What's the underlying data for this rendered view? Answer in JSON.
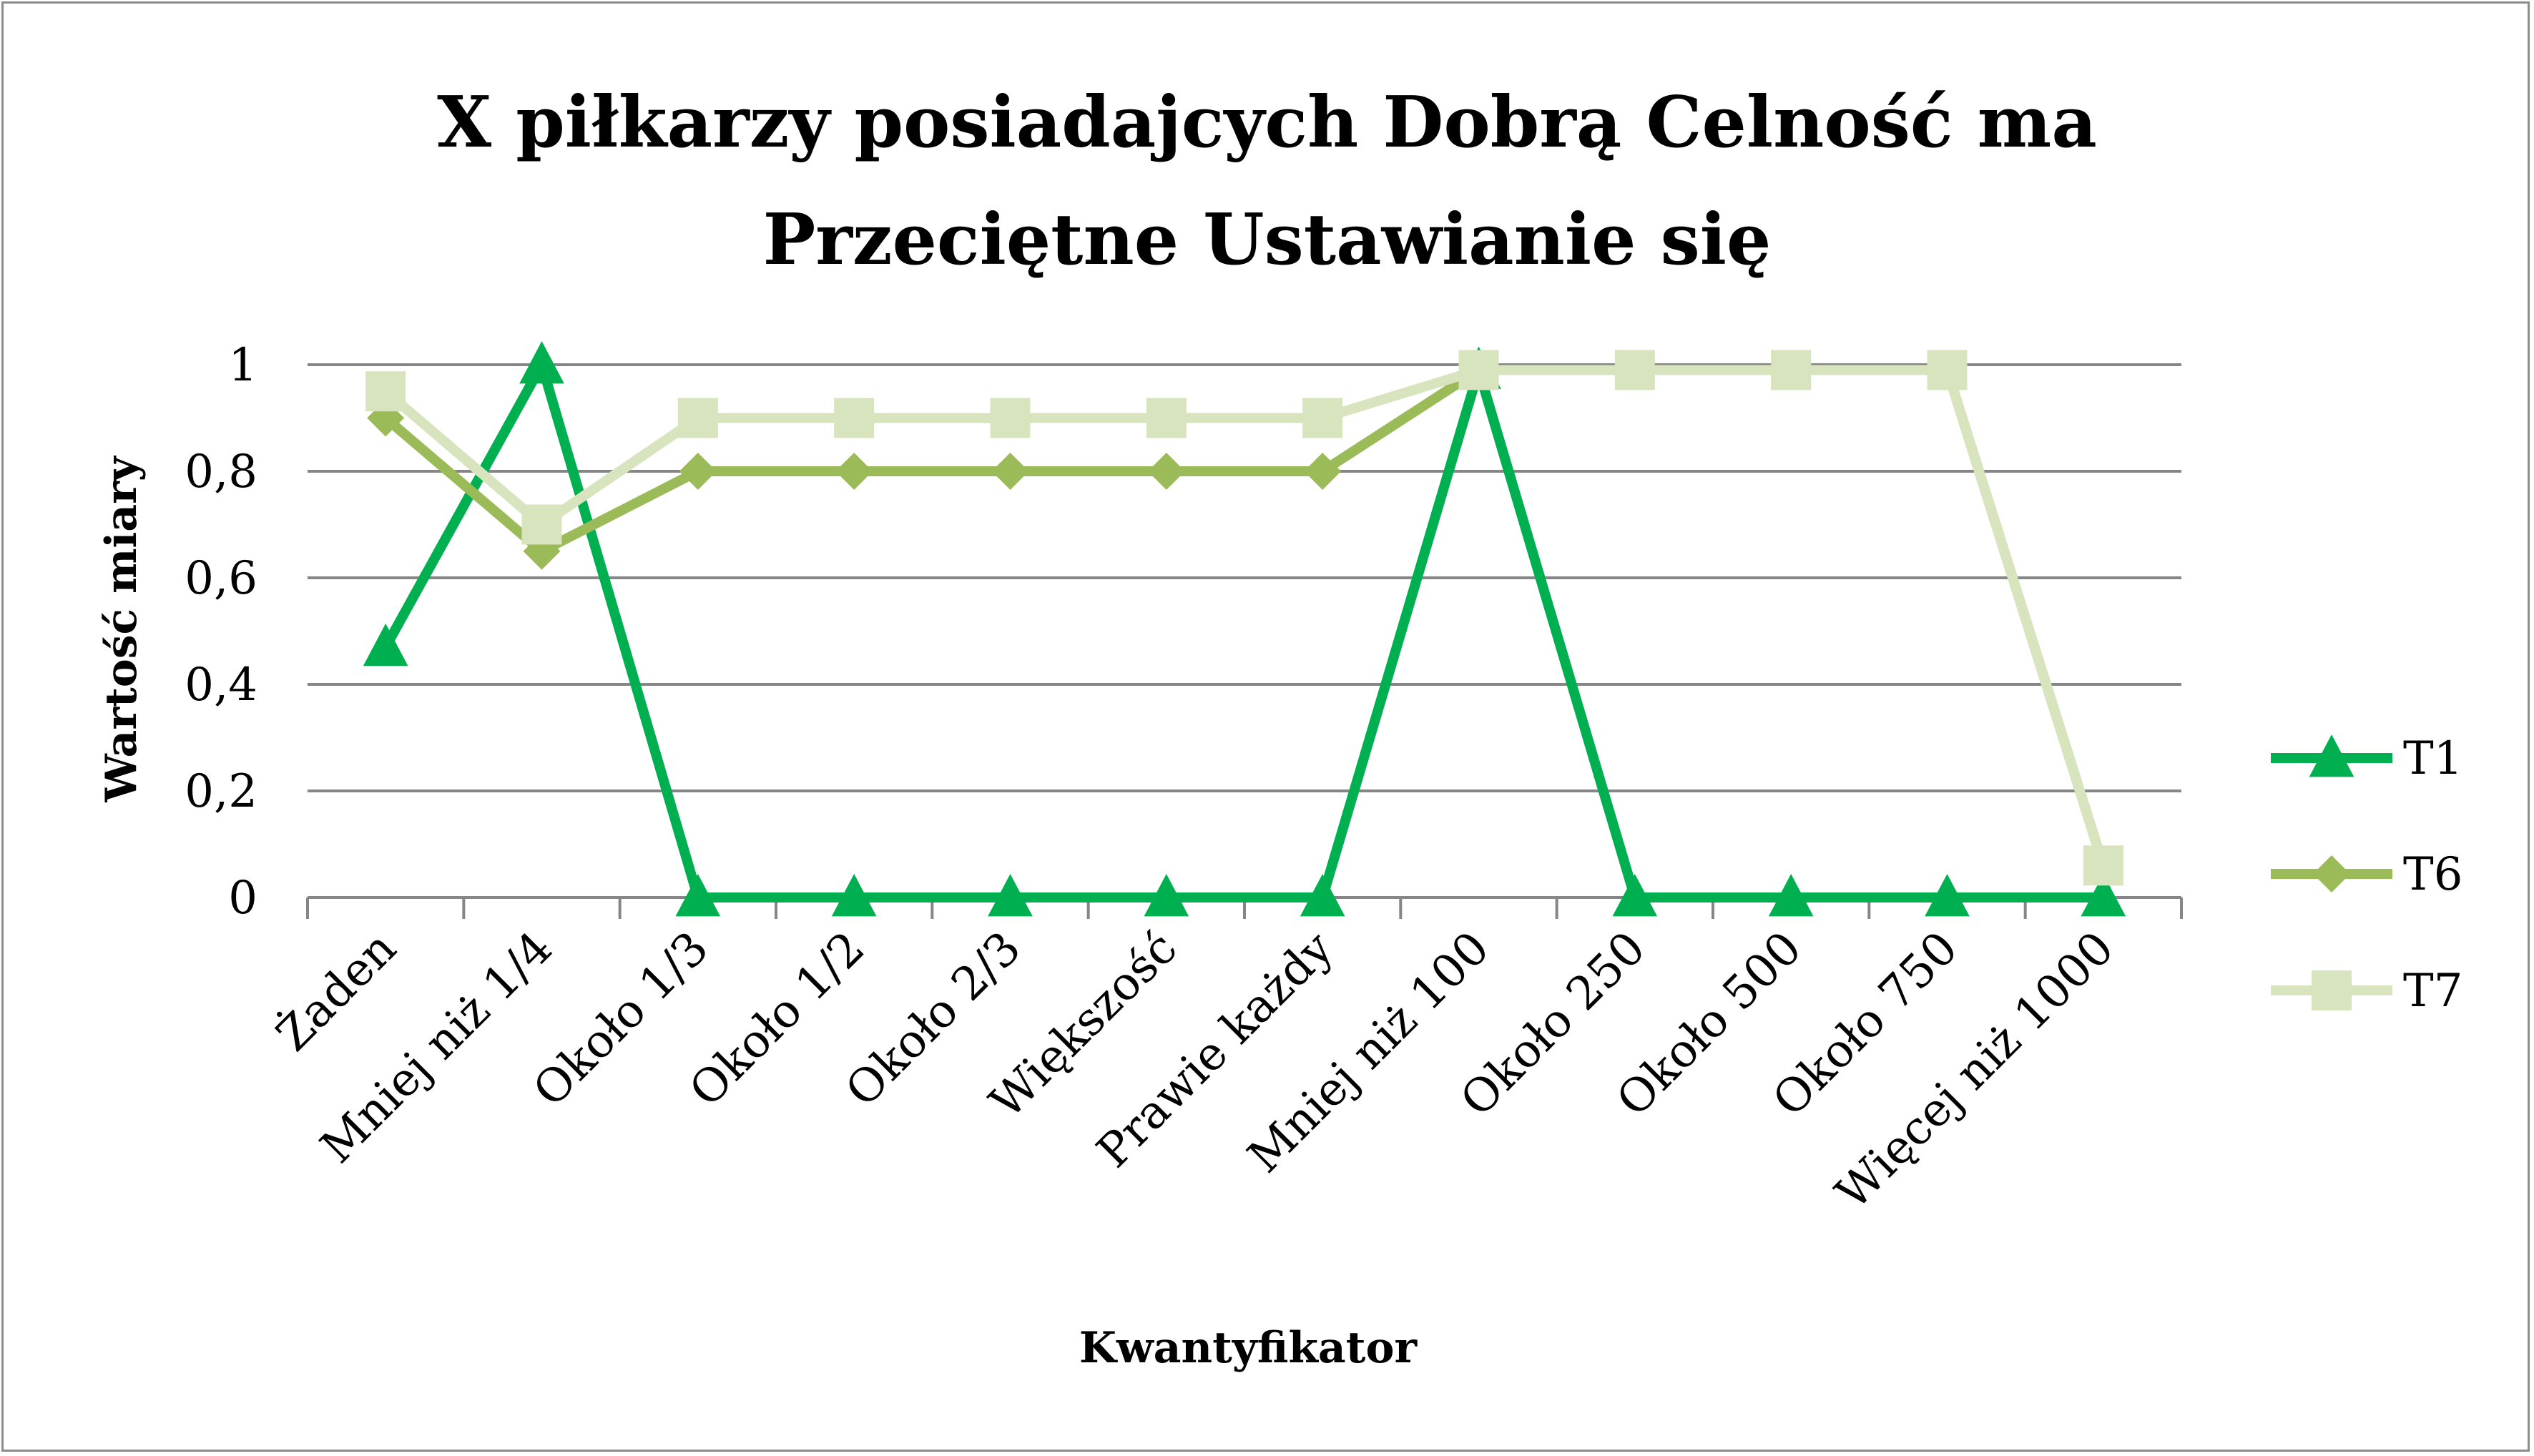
{
  "chart_data": {
    "type": "line",
    "title": "X piłkarzy posiadajcych Dobrą Celność ma Przeciętne Ustawianie się",
    "title_lines": [
      "X piłkarzy posiadajcych Dobrą Celność ma",
      "Przeciętne Ustawianie się"
    ],
    "xlabel": "Kwantyfikator",
    "ylabel": "Wartość miary",
    "ylim": [
      0,
      1
    ],
    "yticks": [
      "0",
      "0,2",
      "0,4",
      "0,6",
      "0,8",
      "1"
    ],
    "ytick_values": [
      0,
      0.2,
      0.4,
      0.6,
      0.8,
      1
    ],
    "grid": true,
    "legend_position": "right",
    "categories": [
      "Żaden",
      "Mniej niż 1/4",
      "Około 1/3",
      "Około 1/2",
      "Około 2/3",
      "Większość",
      "Prawie każdy",
      "Mniej niż 100",
      "Około 250",
      "Około 500",
      "Około 750",
      "Więcej niż 1000"
    ],
    "series": [
      {
        "name": "T1",
        "marker": "triangle",
        "color": "#00b050",
        "values": [
          0.47,
          1.0,
          0,
          0,
          0,
          0,
          0,
          0.99,
          0,
          0,
          0,
          0
        ]
      },
      {
        "name": "T6",
        "marker": "diamond",
        "color": "#9bbb59",
        "values": [
          0.9,
          0.65,
          0.8,
          0.8,
          0.8,
          0.8,
          0.8,
          0.99,
          0.99,
          0.99,
          0.99,
          0.06
        ]
      },
      {
        "name": "T7",
        "marker": "square",
        "color": "#d7e4bd",
        "values": [
          0.95,
          0.7,
          0.9,
          0.9,
          0.9,
          0.9,
          0.9,
          0.99,
          0.99,
          0.99,
          0.99,
          0.06
        ]
      }
    ]
  },
  "colors": {
    "grid": "#868686",
    "frame": "#8c8c8c"
  }
}
